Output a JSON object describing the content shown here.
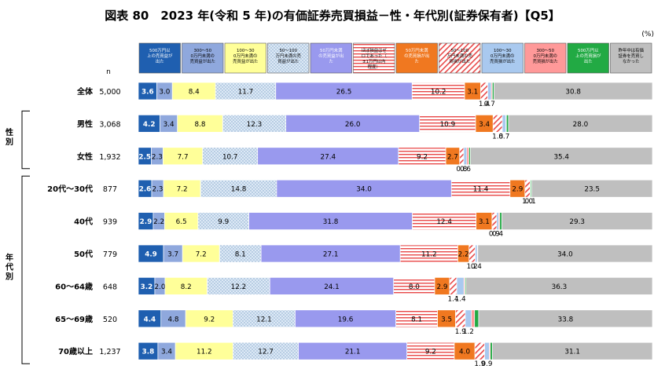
{
  "title": "図表 80　2023 年(令和 5 年)の有価証券売買損益－性・年代別(証券保有者)【Q5】",
  "unit": "(%)",
  "n_label": "n",
  "colors": [
    "#1f5fb0",
    "#8fa8dd",
    "#ffff99",
    "#dde9f6",
    "#9999ee",
    "#ffffff",
    "#f07820",
    "#ffffff",
    "#a9c9ef",
    "#ff9999",
    "#22aa44",
    "#bfbfbf"
  ],
  "patterns": [
    "solid",
    "solid",
    "solid",
    "dots",
    "solid",
    "hstripes",
    "solid",
    "diag",
    "solid",
    "solid",
    "solid",
    "solid"
  ],
  "group_labels": [
    "性別",
    "年代別"
  ],
  "chart_data": {
    "type": "bar",
    "orientation": "horizontal",
    "stacked": true,
    "legend": [
      "500万円以上の売買益が出た",
      "300〜500万円未満の売買益が出た",
      "100〜300万円未満の売買益が出た",
      "50〜100万円未満の売買益が出た",
      "50万円未満の売買益が出た",
      "ほぼ損益はゼロであった（±1万円以内程度）",
      "50万円未満の売買損が出た",
      "50〜100万円未満の売買損が出た",
      "100〜300万円未満の売買損が出た",
      "300〜500万円未満の売買損が出た",
      "500万円以上の売買損が出た",
      "昨年中は有価証券を売買しなかった"
    ],
    "categories": [
      "全体",
      "男性",
      "女性",
      "20代〜30代",
      "40代",
      "50代",
      "60〜64歳",
      "65〜69歳",
      "70歳以上"
    ],
    "n": [
      "5,000",
      "3,068",
      "1,932",
      "877",
      "939",
      "779",
      "648",
      "520",
      "1,237"
    ],
    "rows": [
      [
        3.6,
        3.0,
        8.4,
        11.7,
        26.5,
        10.2,
        3.1,
        1.4,
        0.7,
        0.2,
        0.3,
        30.8
      ],
      [
        4.2,
        3.4,
        8.8,
        12.3,
        26.0,
        10.9,
        3.4,
        1.8,
        0.7,
        0.1,
        0.4,
        28.0
      ],
      [
        2.5,
        2.3,
        7.7,
        10.7,
        27.4,
        9.2,
        2.7,
        0.8,
        0.6,
        0.4,
        0.3,
        35.4
      ],
      [
        2.6,
        2.3,
        7.2,
        14.8,
        34.0,
        11.4,
        2.9,
        1.0,
        0.1,
        0.0,
        0.2,
        23.5
      ],
      [
        2.9,
        2.2,
        6.5,
        9.9,
        31.8,
        12.4,
        3.1,
        0.9,
        0.4,
        0.2,
        0.4,
        29.3
      ],
      [
        4.9,
        3.7,
        7.2,
        8.1,
        27.1,
        11.2,
        2.2,
        1.2,
        0.4,
        0.0,
        0.1,
        34.0
      ],
      [
        3.2,
        2.0,
        8.2,
        12.2,
        24.1,
        8.0,
        2.9,
        1.4,
        1.4,
        0.2,
        0.2,
        36.3
      ],
      [
        4.4,
        4.8,
        9.2,
        12.1,
        19.6,
        8.1,
        3.5,
        1.9,
        1.2,
        0.6,
        0.8,
        33.8
      ],
      [
        3.8,
        3.4,
        11.2,
        12.7,
        21.1,
        9.2,
        4.0,
        1.9,
        0.9,
        0.2,
        0.4,
        31.1
      ]
    ],
    "xlim": [
      0,
      100
    ],
    "groups": [
      {
        "label": "性別",
        "rows": [
          1,
          2
        ]
      },
      {
        "label": "年代別",
        "rows": [
          3,
          4,
          5,
          6,
          7,
          8
        ]
      }
    ]
  }
}
